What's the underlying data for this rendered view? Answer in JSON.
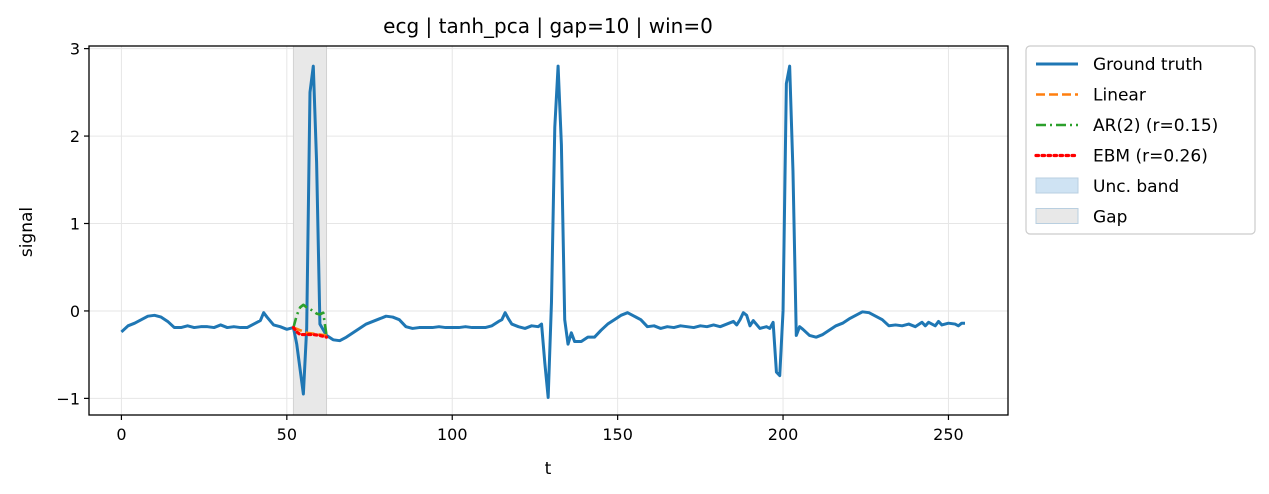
{
  "chart_data": {
    "type": "line",
    "title": "ecg | tanh_pca | gap=10 | win=0",
    "xlabel": "t",
    "ylabel": "signal",
    "xlim": [
      -9.8,
      268
    ],
    "ylim": [
      -1.19,
      3.03
    ],
    "xticks": [
      0,
      50,
      100,
      150,
      200,
      250
    ],
    "yticks": [
      -1,
      0,
      1,
      2,
      3
    ],
    "xtick_labels": [
      "0",
      "50",
      "100",
      "150",
      "200",
      "250"
    ],
    "ytick_labels": [
      "−1",
      "0",
      "1",
      "2",
      "3"
    ],
    "grid": true,
    "legend_position": "outside-top-right",
    "gap": [
      52,
      62
    ],
    "series": [
      {
        "name": "Ground truth",
        "color": "#1f77b4",
        "style": "solid",
        "points": [
          [
            0,
            -0.24
          ],
          [
            2,
            -0.17
          ],
          [
            4,
            -0.14
          ],
          [
            6,
            -0.1
          ],
          [
            8,
            -0.06
          ],
          [
            10,
            -0.05
          ],
          [
            12,
            -0.07
          ],
          [
            14,
            -0.12
          ],
          [
            16,
            -0.19
          ],
          [
            18,
            -0.19
          ],
          [
            20,
            -0.17
          ],
          [
            22,
            -0.19
          ],
          [
            24,
            -0.18
          ],
          [
            26,
            -0.18
          ],
          [
            28,
            -0.19
          ],
          [
            30,
            -0.16
          ],
          [
            32,
            -0.19
          ],
          [
            34,
            -0.18
          ],
          [
            36,
            -0.19
          ],
          [
            38,
            -0.19
          ],
          [
            40,
            -0.15
          ],
          [
            42,
            -0.11
          ],
          [
            43,
            -0.02
          ],
          [
            44,
            -0.07
          ],
          [
            46,
            -0.16
          ],
          [
            48,
            -0.18
          ],
          [
            50,
            -0.21
          ],
          [
            52,
            -0.19
          ],
          [
            53,
            -0.38
          ],
          [
            55,
            -0.95
          ],
          [
            56,
            -0.2
          ],
          [
            57,
            2.5
          ],
          [
            58,
            2.8
          ],
          [
            59,
            1.7
          ],
          [
            60,
            -0.15
          ],
          [
            62,
            -0.28
          ],
          [
            64,
            -0.33
          ],
          [
            66,
            -0.34
          ],
          [
            68,
            -0.3
          ],
          [
            70,
            -0.25
          ],
          [
            72,
            -0.2
          ],
          [
            74,
            -0.15
          ],
          [
            76,
            -0.12
          ],
          [
            78,
            -0.09
          ],
          [
            80,
            -0.06
          ],
          [
            82,
            -0.07
          ],
          [
            84,
            -0.1
          ],
          [
            86,
            -0.18
          ],
          [
            88,
            -0.2
          ],
          [
            90,
            -0.19
          ],
          [
            92,
            -0.19
          ],
          [
            94,
            -0.19
          ],
          [
            96,
            -0.18
          ],
          [
            98,
            -0.19
          ],
          [
            100,
            -0.19
          ],
          [
            102,
            -0.19
          ],
          [
            104,
            -0.18
          ],
          [
            106,
            -0.19
          ],
          [
            108,
            -0.19
          ],
          [
            110,
            -0.19
          ],
          [
            112,
            -0.17
          ],
          [
            114,
            -0.12
          ],
          [
            115,
            -0.1
          ],
          [
            116,
            -0.02
          ],
          [
            117,
            -0.09
          ],
          [
            118,
            -0.15
          ],
          [
            120,
            -0.18
          ],
          [
            122,
            -0.2
          ],
          [
            124,
            -0.17
          ],
          [
            126,
            -0.18
          ],
          [
            127,
            -0.15
          ],
          [
            128,
            -0.6
          ],
          [
            129,
            -0.99
          ],
          [
            130,
            0.1
          ],
          [
            131,
            2.1
          ],
          [
            132,
            2.8
          ],
          [
            133,
            1.9
          ],
          [
            134,
            -0.1
          ],
          [
            135,
            -0.38
          ],
          [
            136,
            -0.25
          ],
          [
            137,
            -0.35
          ],
          [
            139,
            -0.35
          ],
          [
            141,
            -0.3
          ],
          [
            143,
            -0.3
          ],
          [
            145,
            -0.22
          ],
          [
            147,
            -0.15
          ],
          [
            149,
            -0.1
          ],
          [
            151,
            -0.05
          ],
          [
            153,
            -0.02
          ],
          [
            155,
            -0.06
          ],
          [
            157,
            -0.1
          ],
          [
            159,
            -0.18
          ],
          [
            161,
            -0.17
          ],
          [
            163,
            -0.2
          ],
          [
            165,
            -0.18
          ],
          [
            167,
            -0.19
          ],
          [
            169,
            -0.17
          ],
          [
            171,
            -0.18
          ],
          [
            173,
            -0.19
          ],
          [
            175,
            -0.17
          ],
          [
            177,
            -0.18
          ],
          [
            179,
            -0.16
          ],
          [
            181,
            -0.18
          ],
          [
            183,
            -0.15
          ],
          [
            185,
            -0.12
          ],
          [
            186,
            -0.16
          ],
          [
            187,
            -0.1
          ],
          [
            188,
            -0.02
          ],
          [
            189,
            -0.05
          ],
          [
            190,
            -0.17
          ],
          [
            191,
            -0.11
          ],
          [
            193,
            -0.2
          ],
          [
            195,
            -0.18
          ],
          [
            196,
            -0.2
          ],
          [
            197,
            -0.13
          ],
          [
            198,
            -0.7
          ],
          [
            199,
            -0.74
          ],
          [
            200,
            0.0
          ],
          [
            201,
            2.6
          ],
          [
            202,
            2.8
          ],
          [
            203,
            1.6
          ],
          [
            204,
            -0.28
          ],
          [
            205,
            -0.18
          ],
          [
            206,
            -0.21
          ],
          [
            208,
            -0.28
          ],
          [
            210,
            -0.3
          ],
          [
            212,
            -0.27
          ],
          [
            214,
            -0.22
          ],
          [
            216,
            -0.17
          ],
          [
            218,
            -0.14
          ],
          [
            220,
            -0.09
          ],
          [
            222,
            -0.05
          ],
          [
            224,
            -0.01
          ],
          [
            226,
            -0.02
          ],
          [
            228,
            -0.06
          ],
          [
            230,
            -0.1
          ],
          [
            232,
            -0.17
          ],
          [
            234,
            -0.16
          ],
          [
            236,
            -0.17
          ],
          [
            238,
            -0.15
          ],
          [
            240,
            -0.18
          ],
          [
            242,
            -0.13
          ],
          [
            243,
            -0.17
          ],
          [
            244,
            -0.13
          ],
          [
            246,
            -0.17
          ],
          [
            247,
            -0.12
          ],
          [
            248,
            -0.16
          ],
          [
            250,
            -0.14
          ],
          [
            252,
            -0.15
          ],
          [
            253,
            -0.17
          ],
          [
            254,
            -0.14
          ],
          [
            255,
            -0.14
          ]
        ]
      },
      {
        "name": "Linear",
        "color": "#ff7f0e",
        "style": "dashed",
        "points": [
          [
            52,
            -0.19
          ],
          [
            54,
            -0.22
          ],
          [
            56,
            -0.25
          ],
          [
            58,
            -0.26
          ],
          [
            60,
            -0.27
          ],
          [
            62,
            -0.28
          ]
        ]
      },
      {
        "name": "AR(2) (r=0.15)",
        "color": "#2ca02c",
        "style": "dashdot",
        "points": [
          [
            52,
            -0.19
          ],
          [
            53,
            -0.05
          ],
          [
            54,
            0.04
          ],
          [
            55,
            0.07
          ],
          [
            56,
            0.04
          ],
          [
            57,
            0.02
          ],
          [
            58,
            0.0
          ],
          [
            59,
            -0.03
          ],
          [
            60,
            -0.04
          ],
          [
            61,
            -0.02
          ],
          [
            62,
            -0.28
          ]
        ]
      },
      {
        "name": "EBM (r=0.26)",
        "color": "#ff0000",
        "style": "dotted",
        "points": [
          [
            52,
            -0.19
          ],
          [
            53,
            -0.24
          ],
          [
            54,
            -0.27
          ],
          [
            56,
            -0.27
          ],
          [
            58,
            -0.27
          ],
          [
            60,
            -0.28
          ],
          [
            62,
            -0.3
          ]
        ]
      }
    ],
    "legend": [
      {
        "label": "Ground truth",
        "kind": "line",
        "color": "#1f77b4",
        "style": "solid"
      },
      {
        "label": "Linear",
        "kind": "line",
        "color": "#ff7f0e",
        "style": "dashed"
      },
      {
        "label": "AR(2) (r=0.15)",
        "kind": "line",
        "color": "#2ca02c",
        "style": "dashdot"
      },
      {
        "label": "EBM (r=0.26)",
        "kind": "line",
        "color": "#ff0000",
        "style": "dotted"
      },
      {
        "label": "Unc. band",
        "kind": "patch",
        "color": "#cfe3f3"
      },
      {
        "label": "Gap",
        "kind": "patch",
        "color": "#e8e8e8"
      }
    ]
  }
}
